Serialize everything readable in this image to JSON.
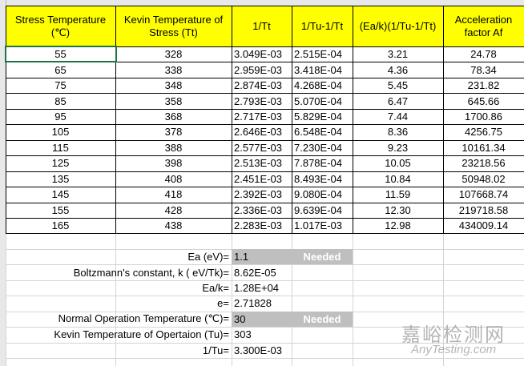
{
  "header": {
    "columns": [
      "Stress Temperature (℃)",
      "Kevin Temperature of Stress (Tt)",
      "1/Tt",
      "1/Tu-1/Tt",
      "(Ea/k)(1/Tu-1/Tt)",
      "Acceleration factor Af"
    ]
  },
  "table": {
    "rows": [
      [
        "55",
        "328",
        "3.049E-03",
        "2.515E-04",
        "3.21",
        "24.78"
      ],
      [
        "65",
        "338",
        "2.959E-03",
        "3.418E-04",
        "4.36",
        "78.34"
      ],
      [
        "75",
        "348",
        "2.874E-03",
        "4.268E-04",
        "5.45",
        "231.82"
      ],
      [
        "85",
        "358",
        "2.793E-03",
        "5.070E-04",
        "6.47",
        "645.66"
      ],
      [
        "95",
        "368",
        "2.717E-03",
        "5.829E-04",
        "7.44",
        "1700.86"
      ],
      [
        "105",
        "378",
        "2.646E-03",
        "6.548E-04",
        "8.36",
        "4256.75"
      ],
      [
        "115",
        "388",
        "2.577E-03",
        "7.230E-04",
        "9.23",
        "10161.34"
      ],
      [
        "125",
        "398",
        "2.513E-03",
        "7.878E-04",
        "10.05",
        "23218.56"
      ],
      [
        "135",
        "408",
        "2.451E-03",
        "8.493E-04",
        "10.84",
        "50948.02"
      ],
      [
        "145",
        "418",
        "2.392E-03",
        "9.080E-04",
        "11.59",
        "107668.74"
      ],
      [
        "155",
        "428",
        "2.336E-03",
        "9.639E-04",
        "12.30",
        "219718.58"
      ],
      [
        "165",
        "438",
        "2.283E-03",
        "1.017E-03",
        "12.98",
        "434009.14"
      ]
    ]
  },
  "params": [
    {
      "label": "Ea (eV)=",
      "value": "1.1",
      "note": "Needed"
    },
    {
      "label": "Boltzmann's constant, k ( eV/Tk)=",
      "value": "8.62E-05"
    },
    {
      "label": "Ea/k=",
      "value": "1.28E+04"
    },
    {
      "label": "e=",
      "value": "2.71828"
    },
    {
      "label": "Normal Operation Temperature (℃)=",
      "value": "30",
      "note": "Needed"
    },
    {
      "label": "Kevin Temperature of Opertaion (Tu)=",
      "value": "303"
    },
    {
      "label": "1/Tu=",
      "value": "3.300E-03"
    }
  ],
  "watermark": {
    "title": "嘉峪检测网",
    "url": "AnyTesting.com"
  }
}
